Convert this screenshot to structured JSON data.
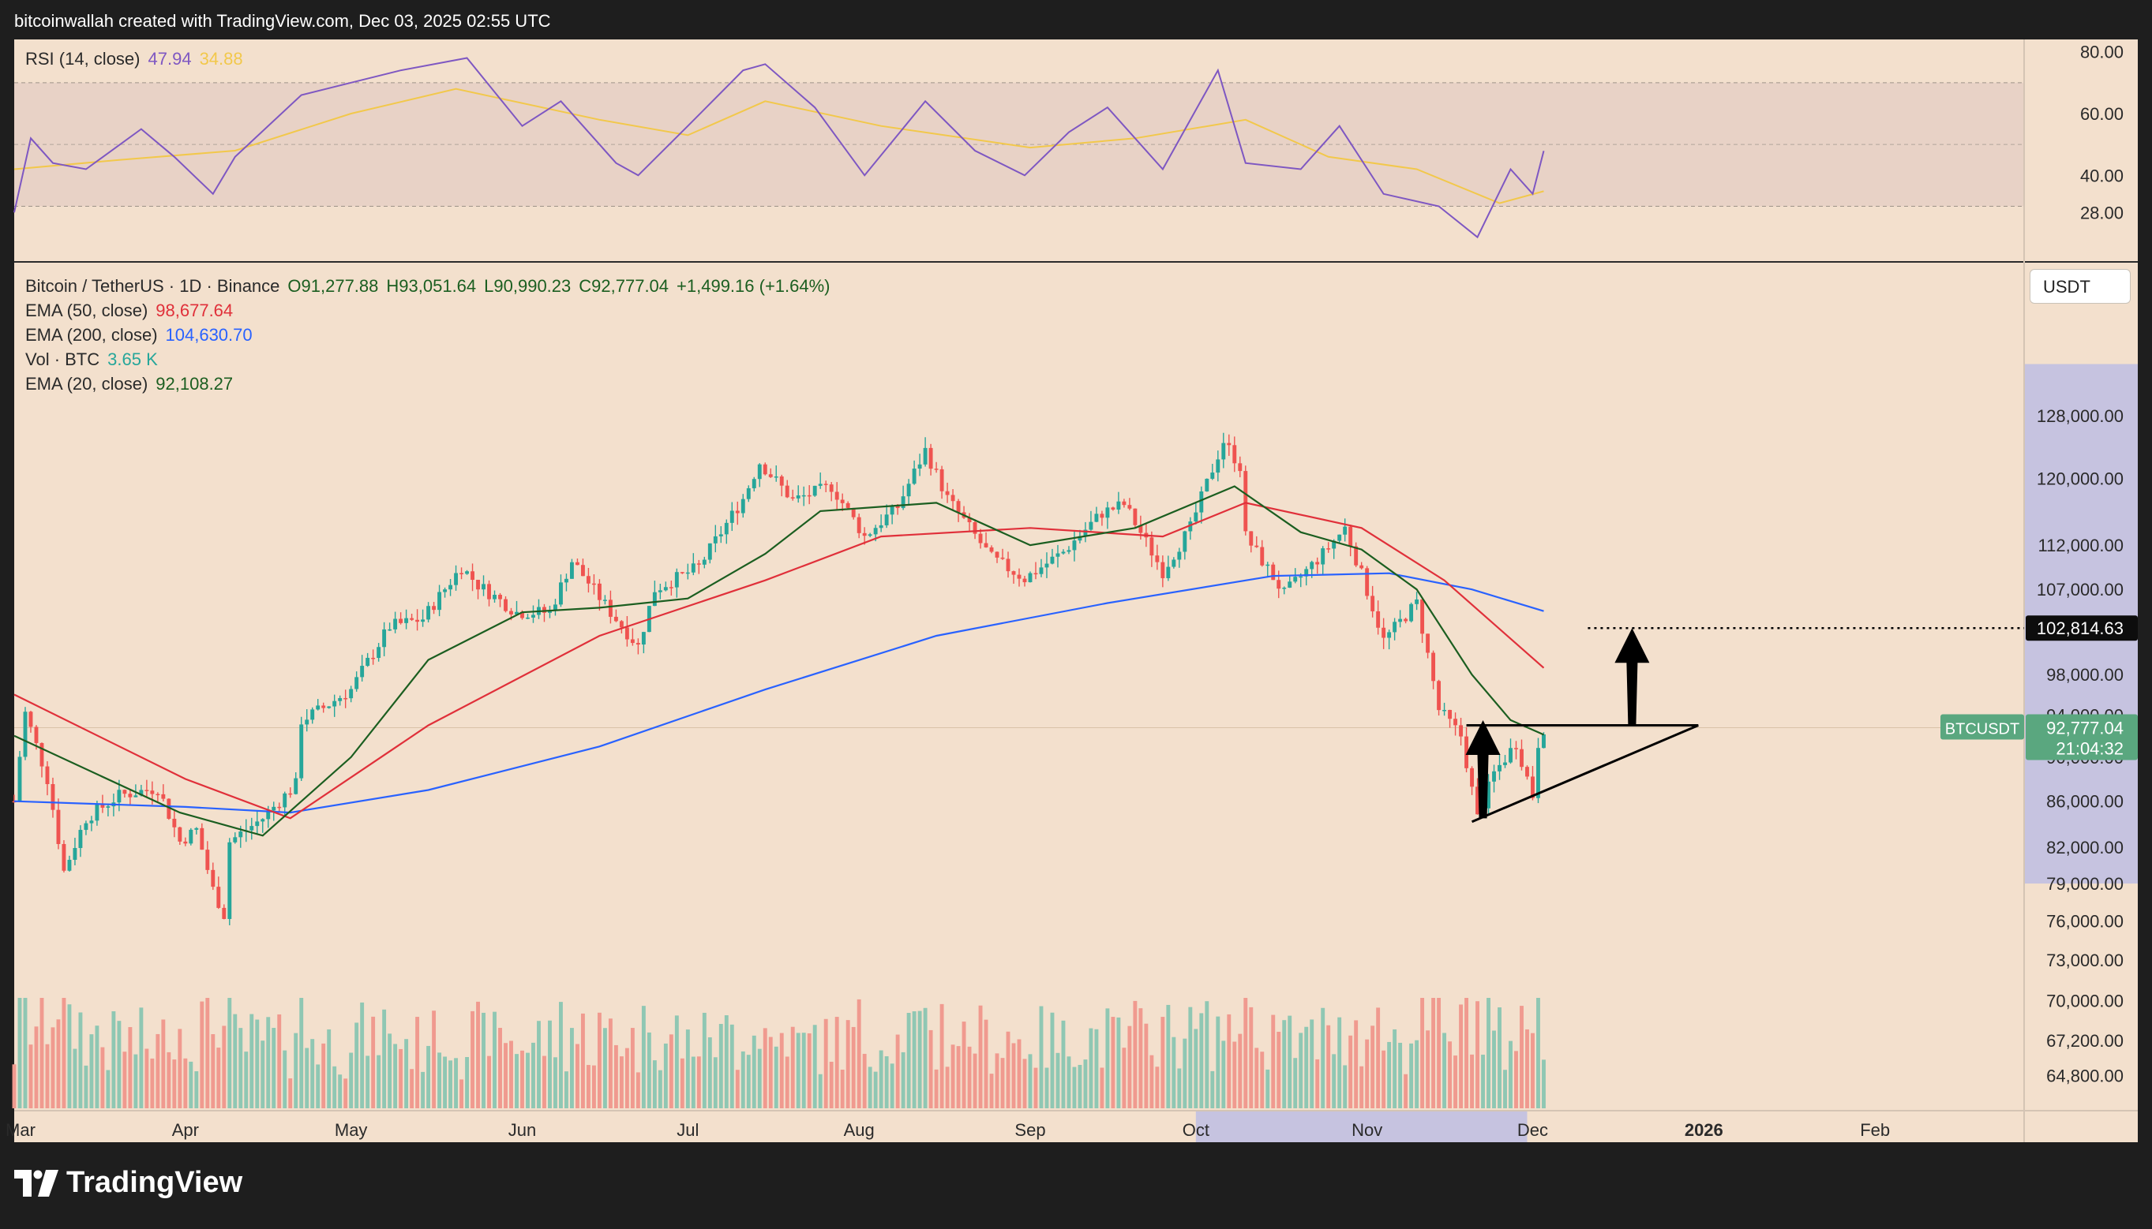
{
  "credit": "bitcoinwallah created with TradingView.com, Dec 03, 2025 02:55 UTC",
  "brand": "TradingView",
  "symbol_line": {
    "name": "Bitcoin / TetherUS · 1D · Binance",
    "open": "O91,277.88",
    "high": "H93,051.64",
    "low": "L90,990.23",
    "close": "C92,777.04",
    "change": "+1,499.16 (+1.64%)"
  },
  "indicators": [
    {
      "label": "EMA (50, close)",
      "value": "98,677.64",
      "color": "#e0303a"
    },
    {
      "label": "EMA (200, close)",
      "value": "104,630.70",
      "color": "#2962ff"
    },
    {
      "label": "Vol · BTC",
      "value": "3.65 K",
      "color": "#26a69a"
    },
    {
      "label": "EMA (20, close)",
      "value": "92,108.27",
      "color": "#1b5e20"
    }
  ],
  "rsi_header": {
    "label": "RSI (14, close)",
    "value": "47.94",
    "ma": "34.88"
  },
  "currency_button": "USDT",
  "price_tag": {
    "symbol": "BTCUSDT",
    "price": "92,777.04",
    "countdown": "21:04:32"
  },
  "target_tag": "102,814.63",
  "colors": {
    "up": "#26a69a",
    "down": "#ef5350",
    "ema20": "#1b5e20",
    "ema50": "#e0303a",
    "ema200": "#2962ff",
    "rsi": "#7e57c2",
    "rsi_ma": "#f2c84b",
    "bg": "#f3e0cd"
  },
  "chart_data": [
    {
      "type": "candlestick",
      "title": "Bitcoin / TetherUS · 1D · Binance",
      "x_range": [
        "2025-03-01",
        "2026-02-28"
      ],
      "x_ticks": [
        "Mar",
        "Apr",
        "May",
        "Jun",
        "Jul",
        "Aug",
        "Sep",
        "Oct",
        "Nov",
        "Dec",
        "2026",
        "Feb"
      ],
      "x_highlight": [
        "2025-10-01",
        "2025-11-30"
      ],
      "y_scale": "log",
      "y_ticks": [
        64800,
        67200,
        70000,
        73000,
        76000,
        79000,
        82000,
        86000,
        90000,
        94000,
        98000,
        107000,
        112000,
        120000,
        128000
      ],
      "y_tick_labels": [
        "64,800.00",
        "67,200.00",
        "70,000.00",
        "73,000.00",
        "76,000.00",
        "79,000.00",
        "82,000.00",
        "86,000.00",
        "90,000.00",
        "94,000.00",
        "98,000.00",
        "107,000.00",
        "112,000.00",
        "120,000.00",
        "128,000.00"
      ],
      "close_path": [
        [
          "2025-03-01",
          86000
        ],
        [
          "2025-03-03",
          94200
        ],
        [
          "2025-03-07",
          88000
        ],
        [
          "2025-03-10",
          80000
        ],
        [
          "2025-03-14",
          84500
        ],
        [
          "2025-03-20",
          86500
        ],
        [
          "2025-03-27",
          87200
        ],
        [
          "2025-03-31",
          82500
        ],
        [
          "2025-04-03",
          83500
        ],
        [
          "2025-04-06",
          78500
        ],
        [
          "2025-04-08",
          76500
        ],
        [
          "2025-04-09",
          82500
        ],
        [
          "2025-04-15",
          84500
        ],
        [
          "2025-04-21",
          87500
        ],
        [
          "2025-04-22",
          93500
        ],
        [
          "2025-04-26",
          94700
        ],
        [
          "2025-05-01",
          96500
        ],
        [
          "2025-05-08",
          103000
        ],
        [
          "2025-05-14",
          103800
        ],
        [
          "2025-05-21",
          109500
        ],
        [
          "2025-05-24",
          107500
        ],
        [
          "2025-05-31",
          104500
        ],
        [
          "2025-06-06",
          104500
        ],
        [
          "2025-06-10",
          110200
        ],
        [
          "2025-06-17",
          104500
        ],
        [
          "2025-06-22",
          100900
        ],
        [
          "2025-06-25",
          107000
        ],
        [
          "2025-07-03",
          109500
        ],
        [
          "2025-07-11",
          117500
        ],
        [
          "2025-07-14",
          122000
        ],
        [
          "2025-07-20",
          117300
        ],
        [
          "2025-07-27",
          119000
        ],
        [
          "2025-08-02",
          113000
        ],
        [
          "2025-08-08",
          116500
        ],
        [
          "2025-08-13",
          123500
        ],
        [
          "2025-08-17",
          117500
        ],
        [
          "2025-08-25",
          110500
        ],
        [
          "2025-08-31",
          108200
        ],
        [
          "2025-09-07",
          111200
        ],
        [
          "2025-09-14",
          115800
        ],
        [
          "2025-09-18",
          116800
        ],
        [
          "2025-09-25",
          109000
        ],
        [
          "2025-09-30",
          114000
        ],
        [
          "2025-10-06",
          124700
        ],
        [
          "2025-10-09",
          121500
        ],
        [
          "2025-10-10",
          113000
        ],
        [
          "2025-10-17",
          106500
        ],
        [
          "2025-10-24",
          111000
        ],
        [
          "2025-10-28",
          114000
        ],
        [
          "2025-11-04",
          101500
        ],
        [
          "2025-11-10",
          105500
        ],
        [
          "2025-11-14",
          94500
        ],
        [
          "2025-11-18",
          92000
        ],
        [
          "2025-11-21",
          84500
        ],
        [
          "2025-11-24",
          88500
        ],
        [
          "2025-11-28",
          91300
        ],
        [
          "2025-12-01",
          86500
        ],
        [
          "2025-12-02",
          91300
        ],
        [
          "2025-12-03",
          92777
        ]
      ],
      "ema20_path": [
        [
          "2025-03-01",
          92000
        ],
        [
          "2025-03-31",
          85000
        ],
        [
          "2025-04-15",
          83000
        ],
        [
          "2025-05-01",
          90000
        ],
        [
          "2025-05-15",
          99500
        ],
        [
          "2025-06-01",
          104500
        ],
        [
          "2025-06-15",
          105000
        ],
        [
          "2025-07-01",
          106000
        ],
        [
          "2025-07-15",
          111000
        ],
        [
          "2025-07-25",
          116000
        ],
        [
          "2025-08-15",
          117000
        ],
        [
          "2025-09-01",
          112000
        ],
        [
          "2025-09-20",
          114000
        ],
        [
          "2025-10-08",
          119000
        ],
        [
          "2025-10-20",
          113500
        ],
        [
          "2025-10-31",
          111500
        ],
        [
          "2025-11-10",
          107000
        ],
        [
          "2025-11-20",
          98000
        ],
        [
          "2025-11-27",
          93500
        ],
        [
          "2025-12-03",
          92108
        ]
      ],
      "ema50_path": [
        [
          "2025-03-01",
          96000
        ],
        [
          "2025-04-01",
          88000
        ],
        [
          "2025-04-20",
          84500
        ],
        [
          "2025-05-15",
          93000
        ],
        [
          "2025-06-15",
          102000
        ],
        [
          "2025-07-15",
          108000
        ],
        [
          "2025-08-05",
          113000
        ],
        [
          "2025-09-01",
          114000
        ],
        [
          "2025-09-25",
          113000
        ],
        [
          "2025-10-10",
          117000
        ],
        [
          "2025-10-31",
          114000
        ],
        [
          "2025-11-15",
          108000
        ],
        [
          "2025-12-03",
          98678
        ]
      ],
      "ema200_path": [
        [
          "2025-03-01",
          86000
        ],
        [
          "2025-04-01",
          85500
        ],
        [
          "2025-04-20",
          85000
        ],
        [
          "2025-05-15",
          87000
        ],
        [
          "2025-06-15",
          91000
        ],
        [
          "2025-07-15",
          96500
        ],
        [
          "2025-08-15",
          102000
        ],
        [
          "2025-09-15",
          105500
        ],
        [
          "2025-10-15",
          108500
        ],
        [
          "2025-11-05",
          108800
        ],
        [
          "2025-11-20",
          107000
        ],
        [
          "2025-12-03",
          104631
        ]
      ],
      "annotations": {
        "resistance_line": {
          "from": [
            "2025-11-19",
            93000
          ],
          "to": [
            "2025-12-31",
            93000
          ]
        },
        "support_line": {
          "from": [
            "2025-11-20",
            84200
          ],
          "to": [
            "2025-12-31",
            93000
          ]
        },
        "target_line": {
          "from": [
            "2025-12-11",
            102815
          ],
          "to": [
            "2026-02-28",
            102815
          ]
        },
        "arrow_up_left": {
          "from": [
            "2025-11-22",
            84500
          ],
          "to": [
            "2025-11-22",
            93500
          ]
        },
        "arrow_up_right": {
          "from": [
            "2025-12-19",
            93000
          ],
          "to": [
            "2025-12-19",
            102815
          ]
        }
      }
    },
    {
      "type": "line",
      "title": "RSI (14, close)",
      "y_ticks": [
        28,
        40,
        60,
        80
      ],
      "y_tick_labels": [
        "28.00",
        "40.00",
        "60.00",
        "80.00"
      ],
      "band": [
        30,
        70
      ],
      "rsi": [
        [
          "2025-03-01",
          28
        ],
        [
          "2025-03-04",
          52
        ],
        [
          "2025-03-08",
          44
        ],
        [
          "2025-03-14",
          42
        ],
        [
          "2025-03-24",
          55
        ],
        [
          "2025-03-30",
          46
        ],
        [
          "2025-04-06",
          34
        ],
        [
          "2025-04-10",
          46
        ],
        [
          "2025-04-22",
          66
        ],
        [
          "2025-05-01",
          70
        ],
        [
          "2025-05-10",
          74
        ],
        [
          "2025-05-22",
          78
        ],
        [
          "2025-06-01",
          56
        ],
        [
          "2025-06-08",
          64
        ],
        [
          "2025-06-18",
          44
        ],
        [
          "2025-06-22",
          40
        ],
        [
          "2025-07-01",
          56
        ],
        [
          "2025-07-11",
          74
        ],
        [
          "2025-07-15",
          76
        ],
        [
          "2025-07-24",
          62
        ],
        [
          "2025-08-02",
          40
        ],
        [
          "2025-08-13",
          64
        ],
        [
          "2025-08-22",
          48
        ],
        [
          "2025-08-31",
          40
        ],
        [
          "2025-09-08",
          54
        ],
        [
          "2025-09-15",
          62
        ],
        [
          "2025-09-25",
          42
        ],
        [
          "2025-10-05",
          74
        ],
        [
          "2025-10-10",
          44
        ],
        [
          "2025-10-20",
          42
        ],
        [
          "2025-10-27",
          56
        ],
        [
          "2025-11-04",
          34
        ],
        [
          "2025-11-14",
          30
        ],
        [
          "2025-11-21",
          20
        ],
        [
          "2025-11-27",
          42
        ],
        [
          "2025-12-01",
          34
        ],
        [
          "2025-12-03",
          47.94
        ]
      ],
      "rsi_ma": [
        [
          "2025-03-01",
          42
        ],
        [
          "2025-03-20",
          45
        ],
        [
          "2025-04-10",
          48
        ],
        [
          "2025-05-01",
          60
        ],
        [
          "2025-05-20",
          68
        ],
        [
          "2025-06-15",
          58
        ],
        [
          "2025-07-01",
          53
        ],
        [
          "2025-07-15",
          64
        ],
        [
          "2025-08-05",
          56
        ],
        [
          "2025-09-01",
          49
        ],
        [
          "2025-09-20",
          52
        ],
        [
          "2025-10-10",
          58
        ],
        [
          "2025-10-25",
          46
        ],
        [
          "2025-11-10",
          42
        ],
        [
          "2025-11-25",
          31
        ],
        [
          "2025-12-03",
          34.88
        ]
      ]
    }
  ]
}
